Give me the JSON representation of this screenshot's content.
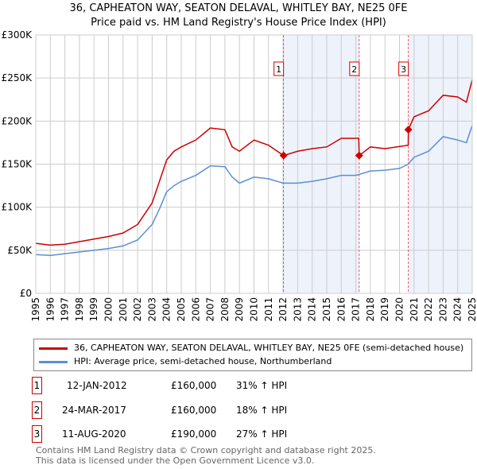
{
  "title": "36, CAPHEATON WAY, SEATON DELAVAL, WHITLEY BAY, NE25 0FE",
  "subtitle": "Price paid vs. HM Land Registry's House Price Index (HPI)",
  "chart_data": {
    "type": "line",
    "title": "36, CAPHEATON WAY, SEATON DELAVAL, WHITLEY BAY, NE25 0FE",
    "subtitle": "Price paid vs. HM Land Registry's House Price Index (HPI)",
    "xlim": [
      1995,
      2025
    ],
    "ylim": [
      0,
      300000
    ],
    "x_ticks": [
      "1995",
      "1996",
      "1997",
      "1998",
      "1999",
      "2000",
      "2001",
      "2002",
      "2003",
      "2004",
      "2005",
      "2006",
      "2007",
      "2008",
      "2009",
      "2010",
      "2011",
      "2012",
      "2013",
      "2014",
      "2015",
      "2016",
      "2017",
      "2018",
      "2019",
      "2020",
      "2021",
      "2022",
      "2023",
      "2024",
      "2025"
    ],
    "y_ticks": [
      {
        "v": 0,
        "label": "£0"
      },
      {
        "v": 50000,
        "label": "£50K"
      },
      {
        "v": 100000,
        "label": "£100K"
      },
      {
        "v": 150000,
        "label": "£150K"
      },
      {
        "v": 200000,
        "label": "£200K"
      },
      {
        "v": 250000,
        "label": "£250K"
      },
      {
        "v": 300000,
        "label": "£300K"
      }
    ],
    "grid": true,
    "series": [
      {
        "name": "36, CAPHEATON WAY, SEATON DELAVAL, WHITLEY BAY, NE25 0FE (semi-detached house)",
        "color": "#cc0000",
        "x": [
          1995,
          1996,
          1997,
          1998,
          1999,
          2000,
          2001,
          2002,
          2003,
          2003.5,
          2004,
          2004.5,
          2005,
          2006,
          2007,
          2008,
          2008.5,
          2009,
          2010,
          2011,
          2012.03,
          2013,
          2014,
          2015,
          2016,
          2017.2,
          2017.23,
          2018,
          2019,
          2020.6,
          2020.61,
          2021,
          2022,
          2023,
          2024,
          2024.6,
          2025
        ],
        "y": [
          58000,
          56000,
          57000,
          60000,
          63000,
          66000,
          70000,
          80000,
          105000,
          130000,
          155000,
          165000,
          170000,
          178000,
          192000,
          190000,
          170000,
          165000,
          178000,
          172000,
          160000,
          165000,
          168000,
          170000,
          180000,
          180000,
          160000,
          170000,
          168000,
          172000,
          190000,
          205000,
          212000,
          230000,
          228000,
          222000,
          248000
        ]
      },
      {
        "name": "HPI: Average price, semi-detached house, Northumberland",
        "color": "#5b8fd4",
        "x": [
          1995,
          1996,
          1997,
          1998,
          1999,
          2000,
          2001,
          2002,
          2003,
          2003.5,
          2004,
          2004.5,
          2005,
          2006,
          2007,
          2008,
          2008.5,
          2009,
          2010,
          2011,
          2012,
          2013,
          2014,
          2015,
          2016,
          2017,
          2018,
          2019,
          2020,
          2020.6,
          2021,
          2022,
          2023,
          2024,
          2024.6,
          2025
        ],
        "y": [
          45000,
          44000,
          46000,
          48000,
          50000,
          52000,
          55000,
          62000,
          80000,
          98000,
          118000,
          125000,
          130000,
          137000,
          148000,
          147000,
          135000,
          128000,
          135000,
          133000,
          128000,
          128000,
          130000,
          133000,
          137000,
          137000,
          142000,
          143000,
          145000,
          150000,
          158000,
          165000,
          182000,
          178000,
          175000,
          195000
        ]
      }
    ],
    "sales": [
      {
        "n": "1",
        "x": 2012.03,
        "y": 160000
      },
      {
        "n": "2",
        "x": 2017.23,
        "y": 160000
      },
      {
        "n": "3",
        "x": 2020.61,
        "y": 190000
      }
    ],
    "shaded": [
      [
        2012.03,
        2017.23
      ],
      [
        2020.61,
        2025
      ]
    ]
  },
  "legend": [
    "36, CAPHEATON WAY, SEATON DELAVAL, WHITLEY BAY, NE25 0FE (semi-detached house)",
    "HPI: Average price, semi-detached house, Northumberland"
  ],
  "transactions": [
    {
      "n": "1",
      "date": "12-JAN-2012",
      "price": "£160,000",
      "hpi": "31% ↑ HPI"
    },
    {
      "n": "2",
      "date": "24-MAR-2017",
      "price": "£160,000",
      "hpi": "18% ↑ HPI"
    },
    {
      "n": "3",
      "date": "11-AUG-2020",
      "price": "£190,000",
      "hpi": "27% ↑ HPI"
    }
  ],
  "footer": [
    "Contains HM Land Registry data © Crown copyright and database right 2025.",
    "This data is licensed under the Open Government Licence v3.0."
  ]
}
